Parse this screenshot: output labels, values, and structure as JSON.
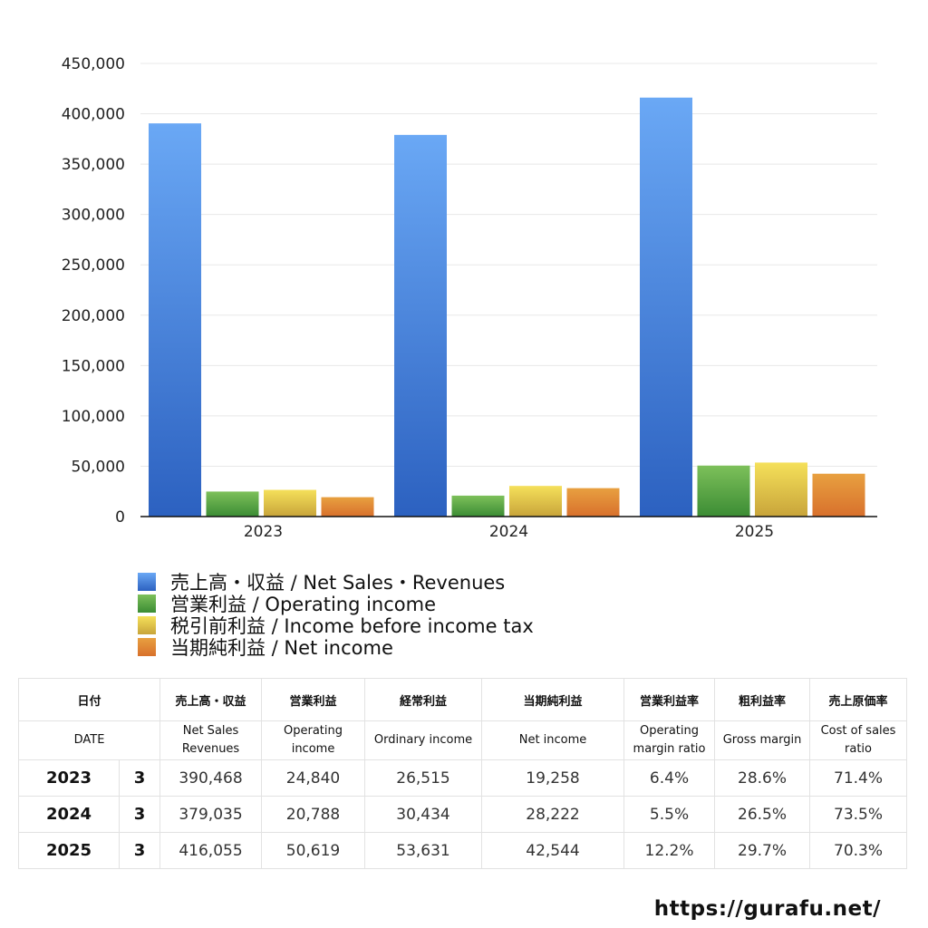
{
  "chart_data": {
    "type": "bar",
    "categories": [
      "2023",
      "2024",
      "2025"
    ],
    "series": [
      {
        "name": "売上高・収益 / Net Sales・Revenues",
        "values": [
          390468,
          379035,
          416055
        ],
        "color": [
          "#6aa8f5",
          "#2c61c0"
        ]
      },
      {
        "name": "営業利益 / Operating income",
        "values": [
          24840,
          20788,
          50619
        ],
        "color": [
          "#7dc05a",
          "#3b8c34"
        ]
      },
      {
        "name": "税引前利益 / Income before income tax",
        "values": [
          26515,
          30434,
          53631
        ],
        "color": [
          "#f5e05a",
          "#c8a43a"
        ]
      },
      {
        "name": "当期純利益 / Net income",
        "values": [
          19258,
          28222,
          42544
        ],
        "color": [
          "#e8a040",
          "#d8702c"
        ]
      }
    ],
    "ylim": [
      0,
      450000
    ],
    "yticks": [
      "0",
      "50,000",
      "100,000",
      "150,000",
      "200,000",
      "250,000",
      "300,000",
      "350,000",
      "400,000",
      "450,000"
    ],
    "grid": true,
    "legend": "bottom-left"
  },
  "table": {
    "headers_ja": [
      "日付",
      "売上高・収益",
      "営業利益",
      "経常利益",
      "当期純利益",
      "営業利益率",
      "粗利益率",
      "売上原価率"
    ],
    "headers_en": [
      "DATE",
      "Net Sales\nRevenues",
      "Operating\nincome",
      "Ordinary income",
      "Net income",
      "Operating\nmargin ratio",
      "Gross margin",
      "Cost of sales\nratio"
    ],
    "rows": [
      [
        "2023",
        "3",
        "390,468",
        "24,840",
        "26,515",
        "19,258",
        "6.4%",
        "28.6%",
        "71.4%"
      ],
      [
        "2024",
        "3",
        "379,035",
        "20,788",
        "30,434",
        "28,222",
        "5.5%",
        "26.5%",
        "73.5%"
      ],
      [
        "2025",
        "3",
        "416,055",
        "50,619",
        "53,631",
        "42,544",
        "12.2%",
        "29.7%",
        "70.3%"
      ]
    ]
  },
  "footer": {
    "url": "https://gurafu.net/"
  }
}
